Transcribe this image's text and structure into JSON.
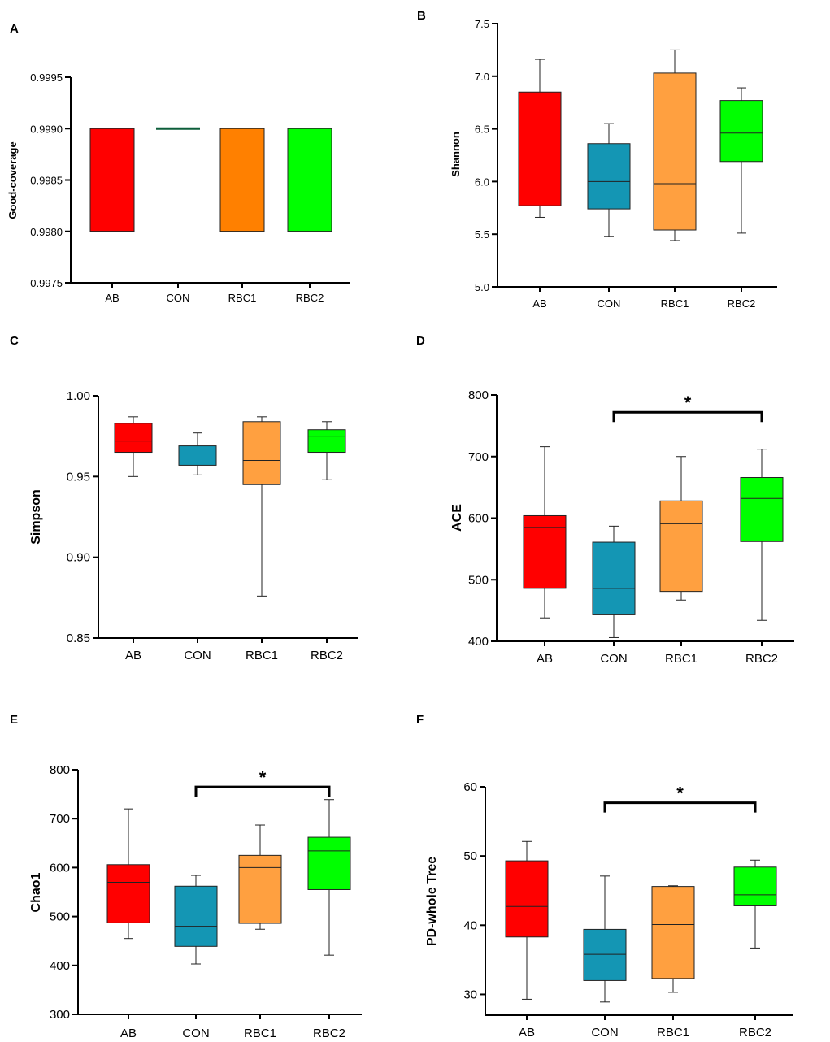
{
  "colors": {
    "AB": "#ff0000",
    "CON": "#1496b4",
    "RBC1": "#ffa040",
    "RBC2": "#00ff00",
    "CON_A": "#0d5e3a",
    "RBC1_A": "#ff8000"
  },
  "chart_data": [
    {
      "panel": "A",
      "type": "box",
      "ylabel": "Good-coverage",
      "ylim": [
        0.9975,
        0.9995
      ],
      "yticks": [
        "0.9975",
        "0.9980",
        "0.9985",
        "0.9990",
        "0.9995"
      ],
      "categories": [
        "AB",
        "CON",
        "RBC1",
        "RBC2"
      ],
      "boxes": [
        {
          "name": "AB",
          "min": 0.998,
          "q1": 0.998,
          "median": 0.998,
          "q3": 0.999,
          "max": 0.999
        },
        {
          "name": "CON",
          "min": 0.999,
          "q1": 0.999,
          "median": 0.999,
          "q3": 0.999,
          "max": 0.999
        },
        {
          "name": "RBC1",
          "min": 0.998,
          "q1": 0.998,
          "median": 0.998,
          "q3": 0.999,
          "max": 0.999
        },
        {
          "name": "RBC2",
          "min": 0.998,
          "q1": 0.998,
          "median": 0.998,
          "q3": 0.999,
          "max": 0.999
        }
      ]
    },
    {
      "panel": "B",
      "type": "box",
      "ylabel": "Shannon",
      "ylim": [
        5.0,
        7.5
      ],
      "yticks": [
        "5.0",
        "5.5",
        "6.0",
        "6.5",
        "7.0",
        "7.5"
      ],
      "categories": [
        "AB",
        "CON",
        "RBC1",
        "RBC2"
      ],
      "boxes": [
        {
          "name": "AB",
          "min": 5.66,
          "q1": 5.77,
          "median": 6.3,
          "q3": 6.85,
          "max": 7.16
        },
        {
          "name": "CON",
          "min": 5.48,
          "q1": 5.74,
          "median": 6.0,
          "q3": 6.36,
          "max": 6.55
        },
        {
          "name": "RBC1",
          "min": 5.44,
          "q1": 5.54,
          "median": 5.98,
          "q3": 7.03,
          "max": 7.25
        },
        {
          "name": "RBC2",
          "min": 5.51,
          "q1": 6.19,
          "median": 6.46,
          "q3": 6.77,
          "max": 6.89
        }
      ]
    },
    {
      "panel": "C",
      "type": "box",
      "ylabel": "Simpson",
      "ylim": [
        0.85,
        1.0
      ],
      "yticks": [
        "0.85",
        "0.90",
        "0.95",
        "1.00"
      ],
      "categories": [
        "AB",
        "CON",
        "RBC1",
        "RBC2"
      ],
      "boxes": [
        {
          "name": "AB",
          "min": 0.95,
          "q1": 0.965,
          "median": 0.972,
          "q3": 0.983,
          "max": 0.987
        },
        {
          "name": "CON",
          "min": 0.951,
          "q1": 0.957,
          "median": 0.964,
          "q3": 0.969,
          "max": 0.977
        },
        {
          "name": "RBC1",
          "min": 0.876,
          "q1": 0.945,
          "median": 0.96,
          "q3": 0.984,
          "max": 0.987
        },
        {
          "name": "RBC2",
          "min": 0.948,
          "q1": 0.965,
          "median": 0.975,
          "q3": 0.979,
          "max": 0.984
        }
      ]
    },
    {
      "panel": "D",
      "type": "box",
      "ylabel": "ACE",
      "ylim": [
        400,
        800
      ],
      "yticks": [
        "400",
        "500",
        "600",
        "700",
        "800"
      ],
      "categories": [
        "AB",
        "CON",
        "RBC1",
        "RBC2"
      ],
      "significance": {
        "from": "CON",
        "to": "RBC2",
        "label": "*"
      },
      "boxes": [
        {
          "name": "AB",
          "min": 438,
          "q1": 486,
          "median": 585,
          "q3": 604,
          "max": 716
        },
        {
          "name": "CON",
          "min": 406,
          "q1": 443,
          "median": 486,
          "q3": 561,
          "max": 587
        },
        {
          "name": "RBC1",
          "min": 467,
          "q1": 481,
          "median": 591,
          "q3": 628,
          "max": 700
        },
        {
          "name": "RBC2",
          "min": 434,
          "q1": 562,
          "median": 632,
          "q3": 666,
          "max": 712
        }
      ]
    },
    {
      "panel": "E",
      "type": "box",
      "ylabel": "Chao1",
      "ylim": [
        300,
        800
      ],
      "yticks": [
        "300",
        "400",
        "500",
        "600",
        "700",
        "800"
      ],
      "categories": [
        "AB",
        "CON",
        "RBC1",
        "RBC2"
      ],
      "significance": {
        "from": "CON",
        "to": "RBC2",
        "label": "*"
      },
      "boxes": [
        {
          "name": "AB",
          "min": 455,
          "q1": 487,
          "median": 570,
          "q3": 606,
          "max": 720
        },
        {
          "name": "CON",
          "min": 403,
          "q1": 439,
          "median": 480,
          "q3": 562,
          "max": 584
        },
        {
          "name": "RBC1",
          "min": 474,
          "q1": 486,
          "median": 600,
          "q3": 625,
          "max": 687
        },
        {
          "name": "RBC2",
          "min": 421,
          "q1": 555,
          "median": 634,
          "q3": 662,
          "max": 739
        }
      ]
    },
    {
      "panel": "F",
      "type": "box",
      "ylabel": "PD-whole Tree",
      "ylim": [
        27,
        60
      ],
      "yticks": [
        "30",
        "40",
        "50",
        "60"
      ],
      "categories": [
        "AB",
        "CON",
        "RBC1",
        "RBC2"
      ],
      "significance": {
        "from": "CON",
        "to": "RBC2",
        "label": "*"
      },
      "boxes": [
        {
          "name": "AB",
          "min": 29.3,
          "q1": 38.3,
          "median": 42.7,
          "q3": 49.3,
          "max": 52.1
        },
        {
          "name": "CON",
          "min": 28.9,
          "q1": 32.0,
          "median": 35.8,
          "q3": 39.4,
          "max": 47.1
        },
        {
          "name": "RBC1",
          "min": 30.3,
          "q1": 32.3,
          "median": 40.1,
          "q3": 45.6,
          "max": 45.7
        },
        {
          "name": "RBC2",
          "min": 36.7,
          "q1": 42.8,
          "median": 44.4,
          "q3": 48.4,
          "max": 49.4
        }
      ]
    }
  ]
}
